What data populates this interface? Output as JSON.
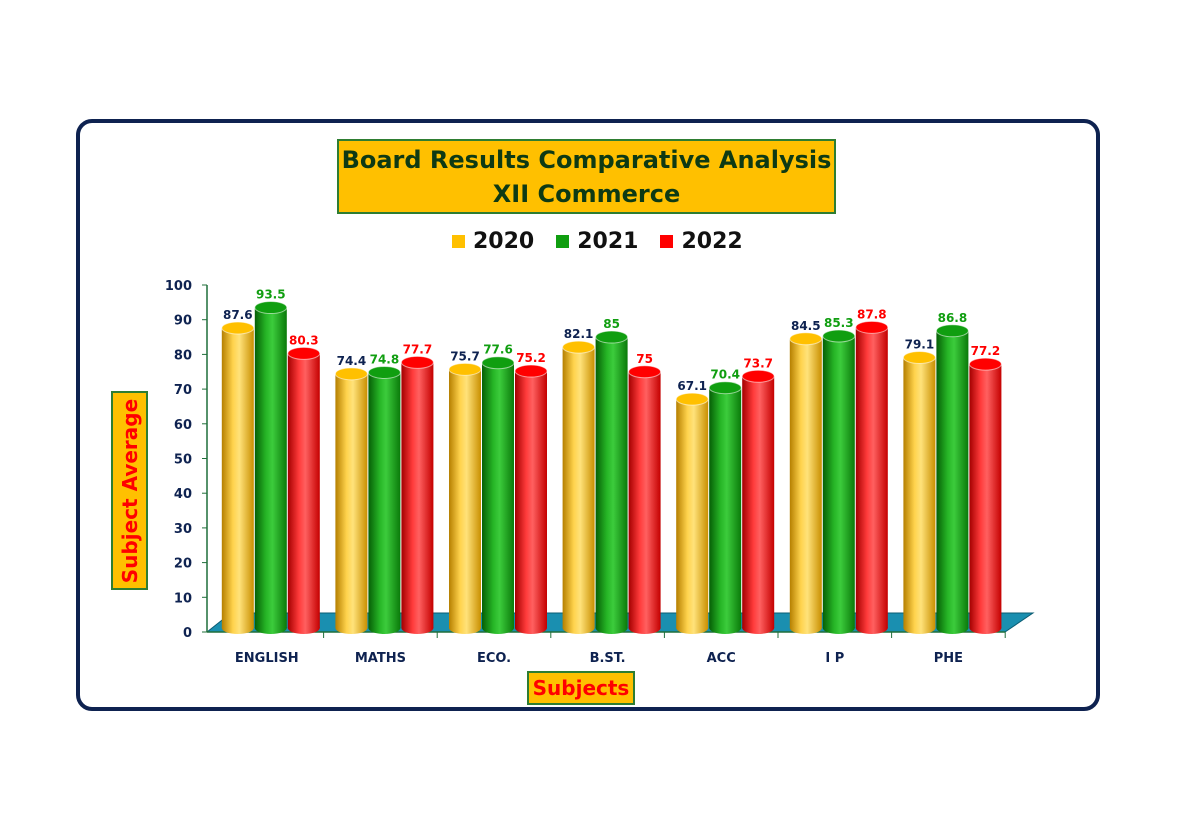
{
  "chart_data": {
    "type": "bar",
    "title": "Board Results Comparative Analysis",
    "subtitle": "XII Commerce",
    "xlabel": "Subjects",
    "ylabel": "Subject Average",
    "ylim": [
      0,
      100
    ],
    "yticks": [
      "0",
      "10",
      "20",
      "30",
      "40",
      "50",
      "60",
      "70",
      "80",
      "90",
      "100"
    ],
    "categories": [
      "ENGLISH",
      "MATHS",
      "ECO.",
      "B.ST.",
      "ACC",
      "I P",
      "PHE"
    ],
    "series": [
      {
        "name": "2020",
        "color": "#ffc000",
        "values": [
          87.6,
          74.4,
          75.7,
          82.1,
          67.1,
          84.5,
          79.1
        ],
        "labels": [
          "87.6",
          "74.4",
          "75.7",
          "82.1",
          "67.1",
          "84.5",
          "79.1"
        ]
      },
      {
        "name": "2021",
        "color": "#109e10",
        "values": [
          93.5,
          74.8,
          77.6,
          85,
          70.4,
          85.3,
          86.8
        ],
        "labels": [
          "93.5",
          "74.8",
          "77.6",
          "85",
          "70.4",
          "85.3",
          "86.8"
        ]
      },
      {
        "name": "2022",
        "color": "#ff0000",
        "values": [
          80.3,
          77.7,
          75.2,
          75,
          73.7,
          87.8,
          77.2
        ],
        "labels": [
          "80.3",
          "77.7",
          "75.2",
          "75",
          "73.7",
          "87.8",
          "77.2"
        ]
      }
    ],
    "label_colors": [
      "#0e2250",
      "#109e10",
      "#ff0000"
    ],
    "floor_color": "#1a8fb0",
    "legend_position": "top",
    "grid": false
  }
}
